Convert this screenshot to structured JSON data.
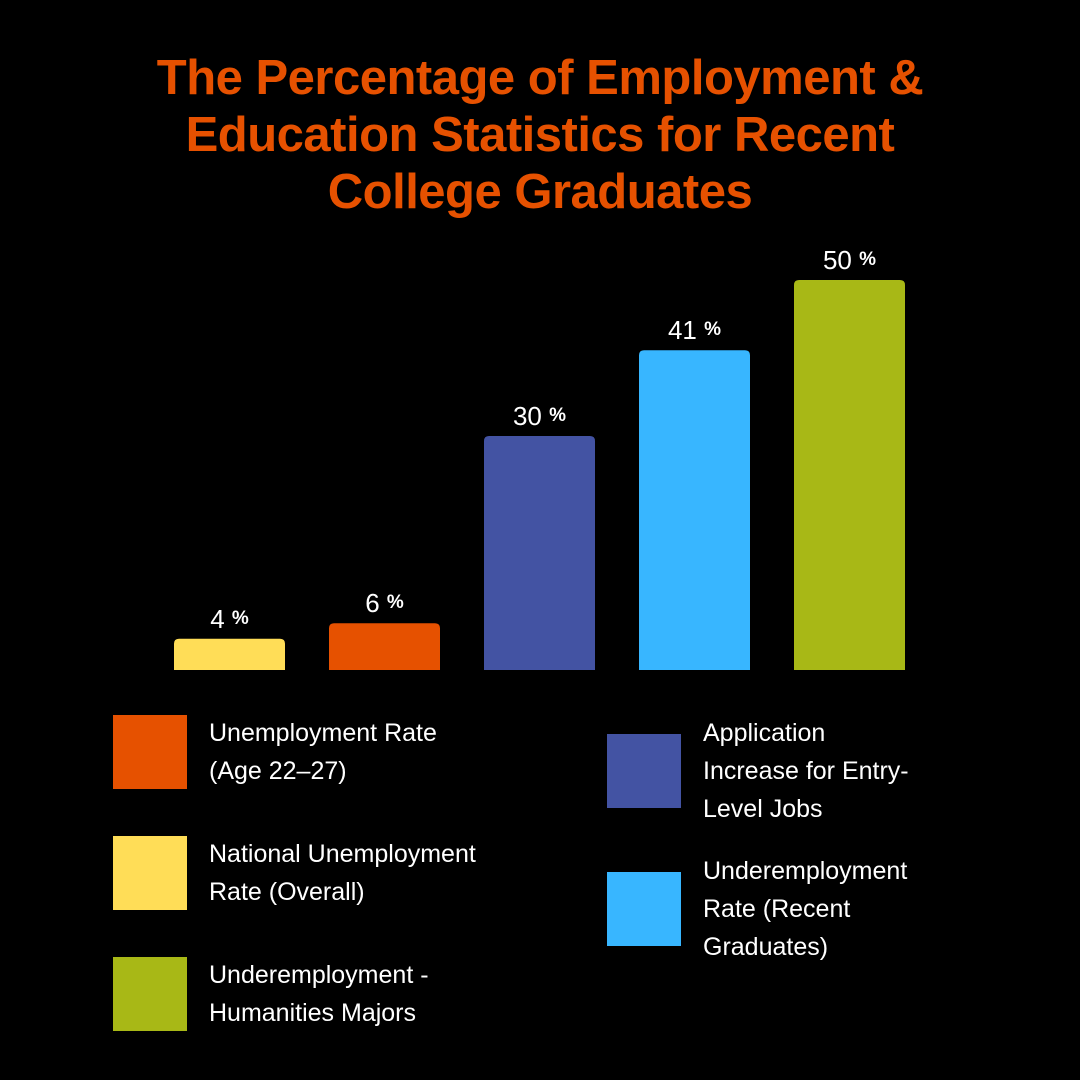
{
  "chart_data": {
    "type": "bar",
    "title_lines": [
      "The Percentage of Employment &",
      "Education Statistics for Recent",
      "College Graduates"
    ],
    "unit": "%",
    "bars": [
      {
        "name": "National Unemployment Rate (Overall)",
        "value": 4,
        "label": "4",
        "color": "#FFDD57"
      },
      {
        "name": "Unemployment Rate (Age 22–27)",
        "value": 6,
        "label": "6",
        "color": "#E65100"
      },
      {
        "name": "Application Increase for Entry-Level Jobs",
        "value": 30,
        "label": "30",
        "color": "#4353A3"
      },
      {
        "name": "Underemployment Rate (Recent Graduates)",
        "value": 41,
        "label": "41",
        "color": "#38B6FF"
      },
      {
        "name": "Underemployment - Humanities Majors",
        "value": 50,
        "label": "50",
        "color": "#A8B816"
      }
    ],
    "ylim": [
      0,
      50
    ],
    "grid": false,
    "legend": {
      "placement": "bottom",
      "items": [
        {
          "lines": [
            "Unemployment Rate",
            "(Age 22–27)"
          ],
          "color": "#E65100"
        },
        {
          "lines": [
            "National Unemployment",
            "Rate (Overall)"
          ],
          "color": "#FFDD57"
        },
        {
          "lines": [
            "Underemployment -",
            "Humanities Majors"
          ],
          "color": "#A8B816"
        },
        {
          "lines": [
            "Application",
            "Increase for Entry-",
            "Level Jobs"
          ],
          "color": "#4353A3"
        },
        {
          "lines": [
            "Underemployment",
            "Rate (Recent",
            "Graduates)"
          ],
          "color": "#38B6FF"
        }
      ]
    },
    "title_color": "#E65100",
    "background": "#000000"
  }
}
